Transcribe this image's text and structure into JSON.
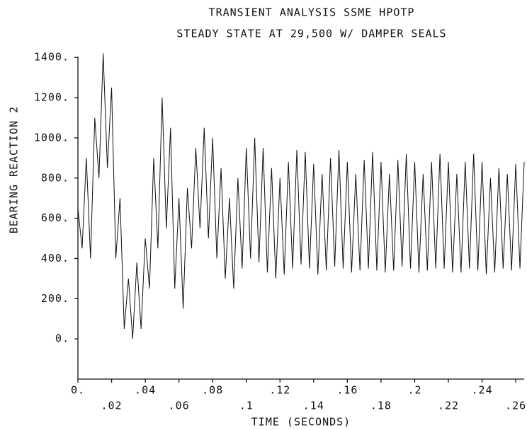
{
  "chart_data": {
    "type": "line",
    "title": "TRANSIENT ANALYSIS SSME HPOTP",
    "subtitle": "STEADY STATE AT 29,500 W/ DAMPER SEALS",
    "x_label": "TIME (SECONDS)",
    "y_label": "BEARING REACTION 2",
    "color": "#111111",
    "xlim": [
      0,
      0.265
    ],
    "ylim": [
      -200,
      1450
    ],
    "xticks": [
      {
        "value": 0,
        "label": "0."
      },
      {
        "value": 0.02,
        "label": ".02"
      },
      {
        "value": 0.04,
        "label": ".04"
      },
      {
        "value": 0.06,
        "label": ".06"
      },
      {
        "value": 0.08,
        "label": ".08"
      },
      {
        "value": 0.1,
        "label": ".1"
      },
      {
        "value": 0.12,
        "label": ".12"
      },
      {
        "value": 0.14,
        "label": ".14"
      },
      {
        "value": 0.16,
        "label": ".16"
      },
      {
        "value": 0.18,
        "label": ".18"
      },
      {
        "value": 0.2,
        "label": ".2"
      },
      {
        "value": 0.22,
        "label": ".22"
      },
      {
        "value": 0.24,
        "label": ".24"
      },
      {
        "value": 0.26,
        "label": ".26"
      }
    ],
    "yticks": [
      {
        "value": 0,
        "label": "0."
      },
      {
        "value": 200,
        "label": "200."
      },
      {
        "value": 400,
        "label": "400."
      },
      {
        "value": 600,
        "label": "600."
      },
      {
        "value": 800,
        "label": "800."
      },
      {
        "value": 1000,
        "label": "1000."
      },
      {
        "value": 1200,
        "label": "1200."
      },
      {
        "value": 1400,
        "label": "1400."
      }
    ],
    "x": [
      0,
      0.0025,
      0.005,
      0.0075,
      0.01,
      0.0125,
      0.015,
      0.0175,
      0.02,
      0.0225,
      0.025,
      0.0275,
      0.03,
      0.0325,
      0.035,
      0.0375,
      0.04,
      0.0425,
      0.045,
      0.0475,
      0.05,
      0.0525,
      0.055,
      0.0575,
      0.06,
      0.0625,
      0.065,
      0.0675,
      0.07,
      0.0725,
      0.075,
      0.0775,
      0.08,
      0.0825,
      0.085,
      0.0875,
      0.09,
      0.0925,
      0.095,
      0.0975,
      0.1,
      0.1025,
      0.105,
      0.1075,
      0.11,
      0.1125,
      0.115,
      0.1175,
      0.12,
      0.1225,
      0.125,
      0.1275,
      0.13,
      0.1325,
      0.135,
      0.1375,
      0.14,
      0.1425,
      0.145,
      0.1475,
      0.15,
      0.1525,
      0.155,
      0.1575,
      0.16,
      0.1625,
      0.165,
      0.1675,
      0.17,
      0.1725,
      0.175,
      0.1775,
      0.18,
      0.1825,
      0.185,
      0.1875,
      0.19,
      0.1925,
      0.195,
      0.1975,
      0.2,
      0.2025,
      0.205,
      0.2075,
      0.21,
      0.2125,
      0.215,
      0.2175,
      0.22,
      0.2225,
      0.225,
      0.2275,
      0.23,
      0.2325,
      0.235,
      0.2375,
      0.24,
      0.2425,
      0.245,
      0.2475,
      0.25,
      0.2525,
      0.255,
      0.2575,
      0.26,
      0.2625,
      0.265
    ],
    "values": [
      650,
      450,
      900,
      400,
      1100,
      800,
      1420,
      850,
      1250,
      400,
      700,
      50,
      300,
      0,
      380,
      50,
      500,
      250,
      900,
      450,
      1200,
      550,
      1050,
      250,
      700,
      150,
      750,
      450,
      950,
      550,
      1050,
      500,
      1000,
      400,
      850,
      300,
      700,
      250,
      800,
      350,
      950,
      400,
      1000,
      380,
      950,
      330,
      850,
      300,
      800,
      320,
      880,
      350,
      940,
      370,
      930,
      350,
      870,
      320,
      820,
      340,
      900,
      360,
      940,
      350,
      880,
      330,
      820,
      340,
      890,
      350,
      930,
      340,
      880,
      330,
      820,
      340,
      890,
      360,
      920,
      350,
      880,
      330,
      820,
      340,
      880,
      350,
      920,
      350,
      880,
      330,
      820,
      330,
      880,
      350,
      920,
      340,
      880,
      320,
      800,
      330,
      850,
      350,
      820,
      340,
      870,
      350,
      880
    ]
  }
}
